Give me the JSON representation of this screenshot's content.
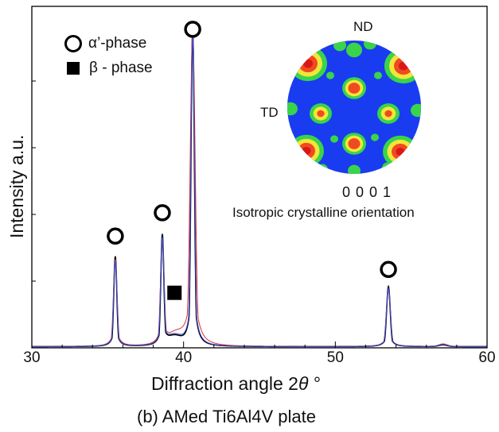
{
  "chart_data": {
    "type": "line",
    "title": "",
    "caption": "(b) AMed Ti6Al4V plate",
    "xlabel_prefix": "Diffraction angle 2",
    "xlabel_theta": "θ",
    "xlabel_suffix": " °",
    "ylabel": "Intensity a.u.",
    "xlim": [
      30,
      60
    ],
    "ylim": [
      0,
      100
    ],
    "x_ticks": [
      "30",
      "40",
      "50",
      "60"
    ],
    "series": [
      {
        "color": "#000000",
        "width": 1.6,
        "peaks": [
          [
            35.5,
            27,
            0.1
          ],
          [
            38.6,
            33,
            0.1
          ],
          [
            39.4,
            2.5,
            0.45
          ],
          [
            40.6,
            95,
            0.11
          ],
          [
            53.5,
            18,
            0.12
          ],
          [
            57.1,
            0.5,
            0.3
          ]
        ]
      },
      {
        "color": "#e03030",
        "width": 1.0,
        "peaks": [
          [
            35.5,
            26,
            0.12
          ],
          [
            38.6,
            31,
            0.12
          ],
          [
            39.5,
            3,
            0.5
          ],
          [
            40.6,
            94,
            0.16
          ],
          [
            53.5,
            17,
            0.14
          ],
          [
            57.1,
            0.8,
            0.3
          ]
        ]
      },
      {
        "color": "#3050e0",
        "width": 1.0,
        "peaks": [
          [
            35.5,
            25.5,
            0.11
          ],
          [
            38.6,
            32,
            0.11
          ],
          [
            39.4,
            2.7,
            0.45
          ],
          [
            40.6,
            93,
            0.12
          ],
          [
            53.5,
            17.5,
            0.13
          ],
          [
            57.1,
            0.6,
            0.3
          ]
        ]
      }
    ],
    "markers": [
      {
        "kind": "alpha",
        "x": 35.5,
        "y": 33.5
      },
      {
        "kind": "alpha",
        "x": 38.6,
        "y": 40.5
      },
      {
        "kind": "alpha",
        "x": 40.6,
        "y": 95.5
      },
      {
        "kind": "alpha",
        "x": 53.5,
        "y": 23.5
      },
      {
        "kind": "beta",
        "x": 39.4,
        "y": 16.5
      }
    ],
    "legend": {
      "alpha_label": "α’-phase",
      "beta_label": "β - phase",
      "placement": "top-left"
    },
    "inset": {
      "type": "pole-figure",
      "label_nd": "ND",
      "label_td": "TD",
      "index": "0 0 0 1",
      "caption": "Isotropic crystalline orientation",
      "colors": {
        "background": "#1a3cf0",
        "low": "#39d44a",
        "mid": "#f2e63a",
        "high": "#f04a22",
        "peak": "#d81818"
      }
    }
  }
}
